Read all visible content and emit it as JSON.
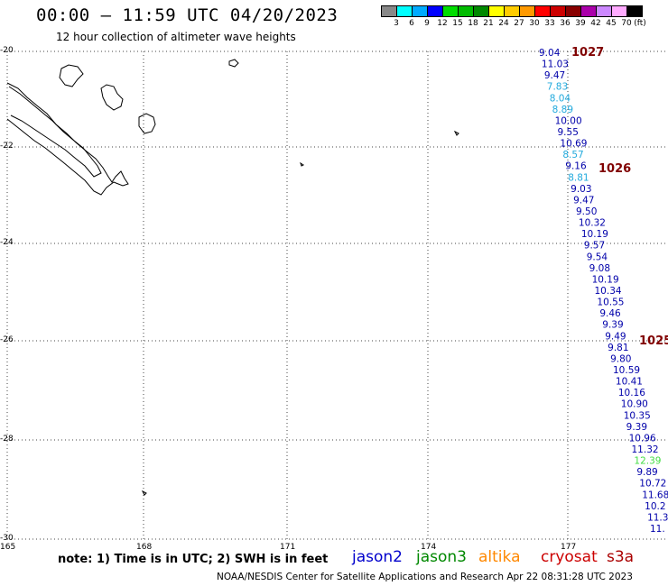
{
  "header": {
    "title": "00:00 – 11:59 UTC 04/20/2023",
    "subtitle": "12 hour collection of altimeter wave heights"
  },
  "colorbar": {
    "colors": [
      "#888888",
      "#00ffff",
      "#00aaff",
      "#0000ff",
      "#00dd00",
      "#00bb00",
      "#008800",
      "#ffff00",
      "#ffcc00",
      "#ff9900",
      "#ff0000",
      "#cc0000",
      "#880000",
      "#aa00aa",
      "#cc88ff",
      "#ffaaff",
      "#000000"
    ],
    "labels": [
      "3",
      "6",
      "9",
      "12",
      "15",
      "18",
      "21",
      "24",
      "27",
      "30",
      "33",
      "36",
      "39",
      "42",
      "45",
      "70"
    ],
    "unit": "(ft)"
  },
  "axes": {
    "lat_labels": [
      "-20",
      "-22",
      "-24",
      "-26",
      "-28",
      "-30"
    ],
    "lon_labels": [
      "165",
      "168",
      "171",
      "174",
      "177"
    ]
  },
  "pressures": [
    "1027",
    "1026",
    "1025"
  ],
  "swh_points": [
    {
      "v": "9.04",
      "c": "#0000aa"
    },
    {
      "v": "11.03",
      "c": "#0000aa"
    },
    {
      "v": "9.47",
      "c": "#0000aa"
    },
    {
      "v": "7.83",
      "c": "#22aadd"
    },
    {
      "v": "8.04",
      "c": "#22aadd"
    },
    {
      "v": "8.89",
      "c": "#22aadd"
    },
    {
      "v": "10.00",
      "c": "#0000aa"
    },
    {
      "v": "9.55",
      "c": "#0000aa"
    },
    {
      "v": "10.69",
      "c": "#0000aa"
    },
    {
      "v": "8.57",
      "c": "#22aadd"
    },
    {
      "v": "9.16",
      "c": "#0000aa"
    },
    {
      "v": "8.81",
      "c": "#22aadd"
    },
    {
      "v": "9.03",
      "c": "#0000aa"
    },
    {
      "v": "9.47",
      "c": "#0000aa"
    },
    {
      "v": "9.50",
      "c": "#0000aa"
    },
    {
      "v": "10.32",
      "c": "#0000aa"
    },
    {
      "v": "10.19",
      "c": "#0000aa"
    },
    {
      "v": "9.57",
      "c": "#0000aa"
    },
    {
      "v": "9.54",
      "c": "#0000aa"
    },
    {
      "v": "9.08",
      "c": "#0000aa"
    },
    {
      "v": "10.19",
      "c": "#0000aa"
    },
    {
      "v": "10.34",
      "c": "#0000aa"
    },
    {
      "v": "10.55",
      "c": "#0000aa"
    },
    {
      "v": "9.46",
      "c": "#0000aa"
    },
    {
      "v": "9.39",
      "c": "#0000aa"
    },
    {
      "v": "9.49",
      "c": "#0000aa"
    },
    {
      "v": "9.81",
      "c": "#0000aa"
    },
    {
      "v": "9.80",
      "c": "#0000aa"
    },
    {
      "v": "10.59",
      "c": "#0000aa"
    },
    {
      "v": "10.41",
      "c": "#0000aa"
    },
    {
      "v": "10.16",
      "c": "#0000aa"
    },
    {
      "v": "10.90",
      "c": "#0000aa"
    },
    {
      "v": "10.35",
      "c": "#0000aa"
    },
    {
      "v": "9.39",
      "c": "#0000aa"
    },
    {
      "v": "10.96",
      "c": "#0000aa"
    },
    {
      "v": "11.32",
      "c": "#0000aa"
    },
    {
      "v": "12.39",
      "c": "#44dd44"
    },
    {
      "v": "9.89",
      "c": "#0000aa"
    },
    {
      "v": "10.72",
      "c": "#0000aa"
    },
    {
      "v": "11.68",
      "c": "#0000aa"
    },
    {
      "v": "10.2",
      "c": "#0000aa"
    },
    {
      "v": "11.3",
      "c": "#0000aa"
    },
    {
      "v": "11.",
      "c": "#0000aa"
    }
  ],
  "footer": {
    "note": "note:  1) Time is in UTC;  2) SWH is in feet",
    "satellites": [
      {
        "name": "jason2",
        "color": "#0000cc"
      },
      {
        "name": "jason3",
        "color": "#008800"
      },
      {
        "name": "altika",
        "color": "#ff8800"
      },
      {
        "name": "cryosat",
        "color": "#cc0000"
      },
      {
        "name": "s3a",
        "color": "#aa0000"
      }
    ],
    "credit": "NOAA/NESDIS Center for Satellite Applications and Research     Apr 22 08:31:28 UTC 2023"
  }
}
